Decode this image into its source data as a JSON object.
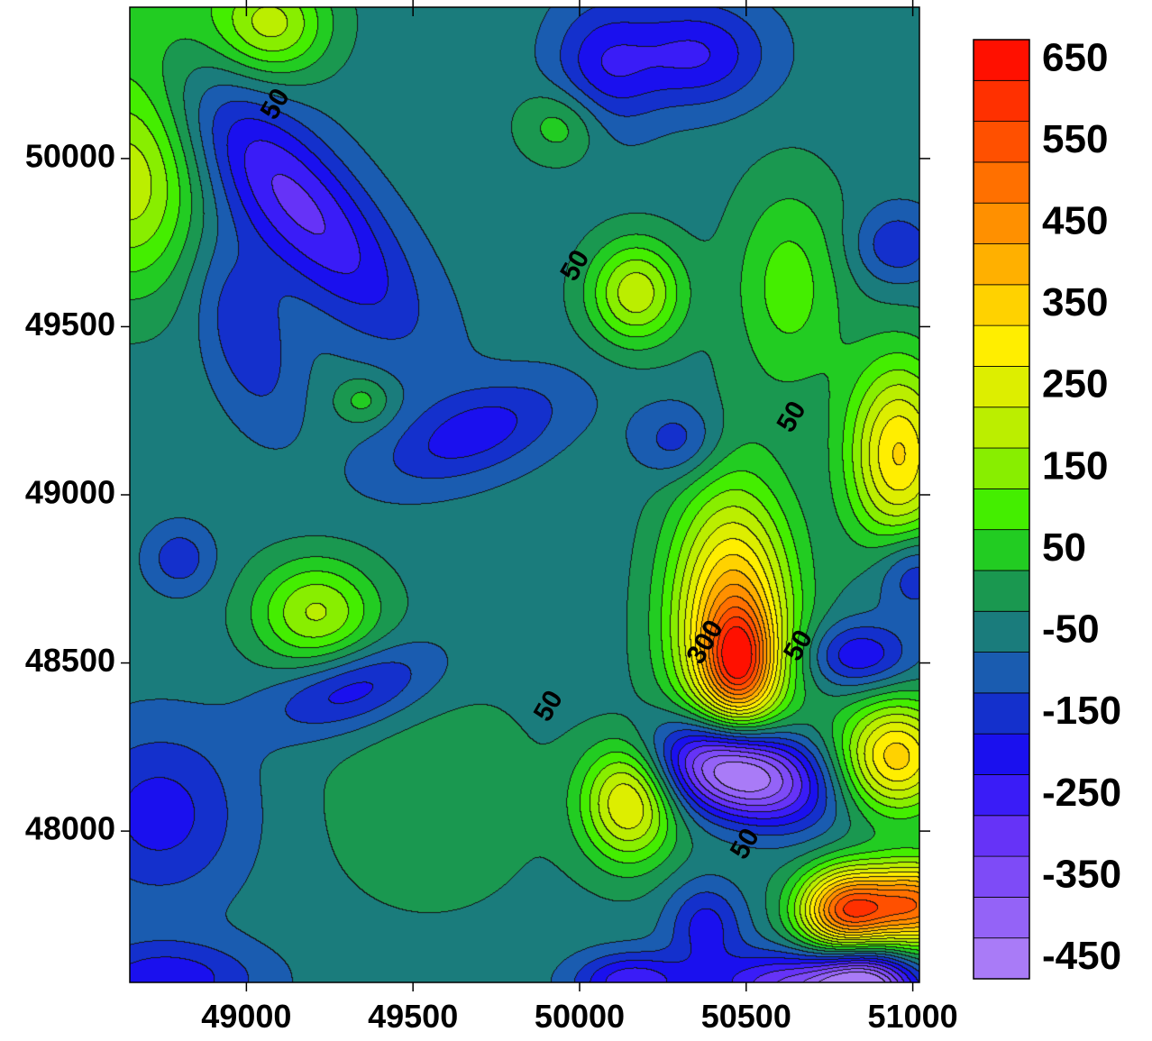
{
  "chart_data": {
    "type": "heatmap",
    "subtype": "filled-contour",
    "title": "",
    "xlabel": "",
    "ylabel": "",
    "xlim": [
      48650,
      51020
    ],
    "ylim": [
      47550,
      50450
    ],
    "x_ticks": [
      49000,
      49500,
      50000,
      50500,
      51000
    ],
    "x_tick_labels": [
      "49000",
      "49500",
      "50000",
      "50500",
      "51000"
    ],
    "y_ticks": [
      48000,
      48500,
      49000,
      49500,
      50000
    ],
    "y_tick_labels": [
      "48000",
      "48500",
      "49000",
      "49500",
      "50000"
    ],
    "grid": false,
    "colorbar": {
      "placement": "right",
      "levels": [
        -450,
        -400,
        -350,
        -300,
        -250,
        -200,
        -150,
        -100,
        -50,
        0,
        50,
        100,
        150,
        200,
        250,
        300,
        350,
        400,
        450,
        500,
        550,
        600,
        650,
        700
      ],
      "labels": [
        "650",
        "550",
        "450",
        "350",
        "250",
        "150",
        "50",
        "-50",
        "-150",
        "-250",
        "-350",
        "-450"
      ],
      "label_values": [
        650,
        550,
        450,
        350,
        250,
        150,
        50,
        -50,
        -150,
        -250,
        -350,
        -450
      ],
      "colors": [
        "#a97bf7",
        "#9463f7",
        "#7e4bf7",
        "#6633f7",
        "#3a1cf7",
        "#1a10ee",
        "#1430cc",
        "#1a5cb0",
        "#1a7c7c",
        "#1a9850",
        "#22cc22",
        "#44ee00",
        "#88ee00",
        "#bbee00",
        "#ddee00",
        "#ffee00",
        "#ffd200",
        "#ffb000",
        "#ff9000",
        "#ff7000",
        "#ff5000",
        "#ff3000",
        "#ff1000"
      ]
    },
    "contour_labels": [
      {
        "text": "50",
        "x": 49090,
        "y": 50160
      },
      {
        "text": "50",
        "x": 49990,
        "y": 49680
      },
      {
        "text": "50",
        "x": 50640,
        "y": 49230
      },
      {
        "text": "300",
        "x": 50380,
        "y": 48560
      },
      {
        "text": "50",
        "x": 50660,
        "y": 48550
      },
      {
        "text": "50",
        "x": 49910,
        "y": 48370
      },
      {
        "text": "50",
        "x": 50500,
        "y": 47960
      }
    ],
    "anomalies": [
      {
        "x": 48710,
        "y": 50480,
        "amp": 110,
        "sx": 200,
        "sy": 240
      },
      {
        "x": 49080,
        "y": 50400,
        "amp": 230,
        "sx": 120,
        "sy": 110
      },
      {
        "x": 48650,
        "y": 49920,
        "amp": 250,
        "sx": 150,
        "sy": 220
      },
      {
        "x": 49150,
        "y": 49870,
        "amp": -240,
        "sx": 120,
        "sy": 340,
        "rot": 0.72
      },
      {
        "x": 49000,
        "y": 49480,
        "amp": -120,
        "sx": 90,
        "sy": 200,
        "rot": 0.3
      },
      {
        "x": 50070,
        "y": 50270,
        "amp": -150,
        "sx": 110,
        "sy": 140
      },
      {
        "x": 50350,
        "y": 50310,
        "amp": -180,
        "sx": 150,
        "sy": 110
      },
      {
        "x": 49950,
        "y": 50100,
        "amp": 120,
        "sx": 90,
        "sy": 80
      },
      {
        "x": 50170,
        "y": 49600,
        "amp": 260,
        "sx": 100,
        "sy": 110
      },
      {
        "x": 49350,
        "y": 49280,
        "amp": 100,
        "sx": 60,
        "sy": 50
      },
      {
        "x": 49680,
        "y": 49180,
        "amp": -150,
        "sx": 210,
        "sy": 90,
        "rot": 0.35
      },
      {
        "x": 50300,
        "y": 49160,
        "amp": -120,
        "sx": 90,
        "sy": 80
      },
      {
        "x": 50630,
        "y": 49620,
        "amp": 150,
        "sx": 120,
        "sy": 220
      },
      {
        "x": 50950,
        "y": 49740,
        "amp": -120,
        "sx": 90,
        "sy": 80
      },
      {
        "x": 50960,
        "y": 49120,
        "amp": 380,
        "sx": 110,
        "sy": 200
      },
      {
        "x": 48800,
        "y": 48810,
        "amp": -110,
        "sx": 70,
        "sy": 70
      },
      {
        "x": 49210,
        "y": 48650,
        "amp": 230,
        "sx": 130,
        "sy": 110
      },
      {
        "x": 49320,
        "y": 48420,
        "amp": -170,
        "sx": 180,
        "sy": 80,
        "rot": 0.3
      },
      {
        "x": 48740,
        "y": 48050,
        "amp": -150,
        "sx": 180,
        "sy": 180
      },
      {
        "x": 48760,
        "y": 47560,
        "amp": -160,
        "sx": 200,
        "sy": 80
      },
      {
        "x": 50460,
        "y": 48620,
        "amp": 480,
        "sx": 130,
        "sy": 280
      },
      {
        "x": 50480,
        "y": 48500,
        "amp": 320,
        "sx": 70,
        "sy": 110
      },
      {
        "x": 50470,
        "y": 48180,
        "amp": -560,
        "sx": 170,
        "sy": 100,
        "rot": -0.25
      },
      {
        "x": 50840,
        "y": 48520,
        "amp": -180,
        "sx": 110,
        "sy": 70
      },
      {
        "x": 51000,
        "y": 48770,
        "amp": -160,
        "sx": 80,
        "sy": 90
      },
      {
        "x": 50950,
        "y": 48220,
        "amp": 400,
        "sx": 120,
        "sy": 120
      },
      {
        "x": 50150,
        "y": 48090,
        "amp": 340,
        "sx": 100,
        "sy": 130
      },
      {
        "x": 50380,
        "y": 47720,
        "amp": -150,
        "sx": 80,
        "sy": 90
      },
      {
        "x": 50800,
        "y": 47760,
        "amp": 580,
        "sx": 100,
        "sy": 90
      },
      {
        "x": 51020,
        "y": 47780,
        "amp": 520,
        "sx": 110,
        "sy": 90
      },
      {
        "x": 50850,
        "y": 47530,
        "amp": -480,
        "sx": 110,
        "sy": 90
      },
      {
        "x": 50600,
        "y": 47540,
        "amp": -250,
        "sx": 140,
        "sy": 70
      },
      {
        "x": 50160,
        "y": 47550,
        "amp": -220,
        "sx": 120,
        "sy": 60
      },
      {
        "x": 49550,
        "y": 48100,
        "amp": 60,
        "sx": 260,
        "sy": 260
      }
    ]
  }
}
